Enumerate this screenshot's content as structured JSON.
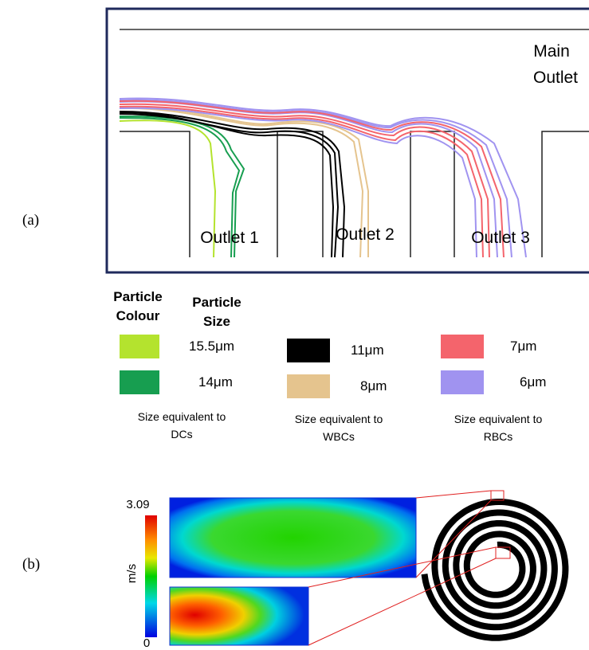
{
  "panel_a": {
    "label": "(a)",
    "main_outlet": [
      "Main",
      "Outlet"
    ],
    "outlets": [
      "Outlet 1",
      "Outlet 2",
      "Outlet 3"
    ]
  },
  "legend": {
    "colour_header": [
      "Particle",
      "Colour"
    ],
    "size_header": [
      "Particle",
      "Size"
    ],
    "groups": [
      {
        "items": [
          {
            "color": "#b4e32e",
            "size": "15.5μm"
          },
          {
            "color": "#179e50",
            "size": "14μm"
          }
        ],
        "caption": [
          "Size equivalent to",
          "DCs"
        ]
      },
      {
        "items": [
          {
            "color": "#000000",
            "size": "11μm"
          },
          {
            "color": "#e5c48e",
            "size": "8μm"
          }
        ],
        "caption": [
          "Size equivalent to",
          "WBCs"
        ]
      },
      {
        "items": [
          {
            "color": "#f4646c",
            "size": "7μm"
          },
          {
            "color": "#a093f0",
            "size": "6μm"
          }
        ],
        "caption": [
          "Size equivalent to",
          "RBCs"
        ]
      }
    ]
  },
  "panel_b": {
    "label": "(b)",
    "colorbar": {
      "max": 3.09,
      "min": 0,
      "unit": "m/s"
    }
  }
}
